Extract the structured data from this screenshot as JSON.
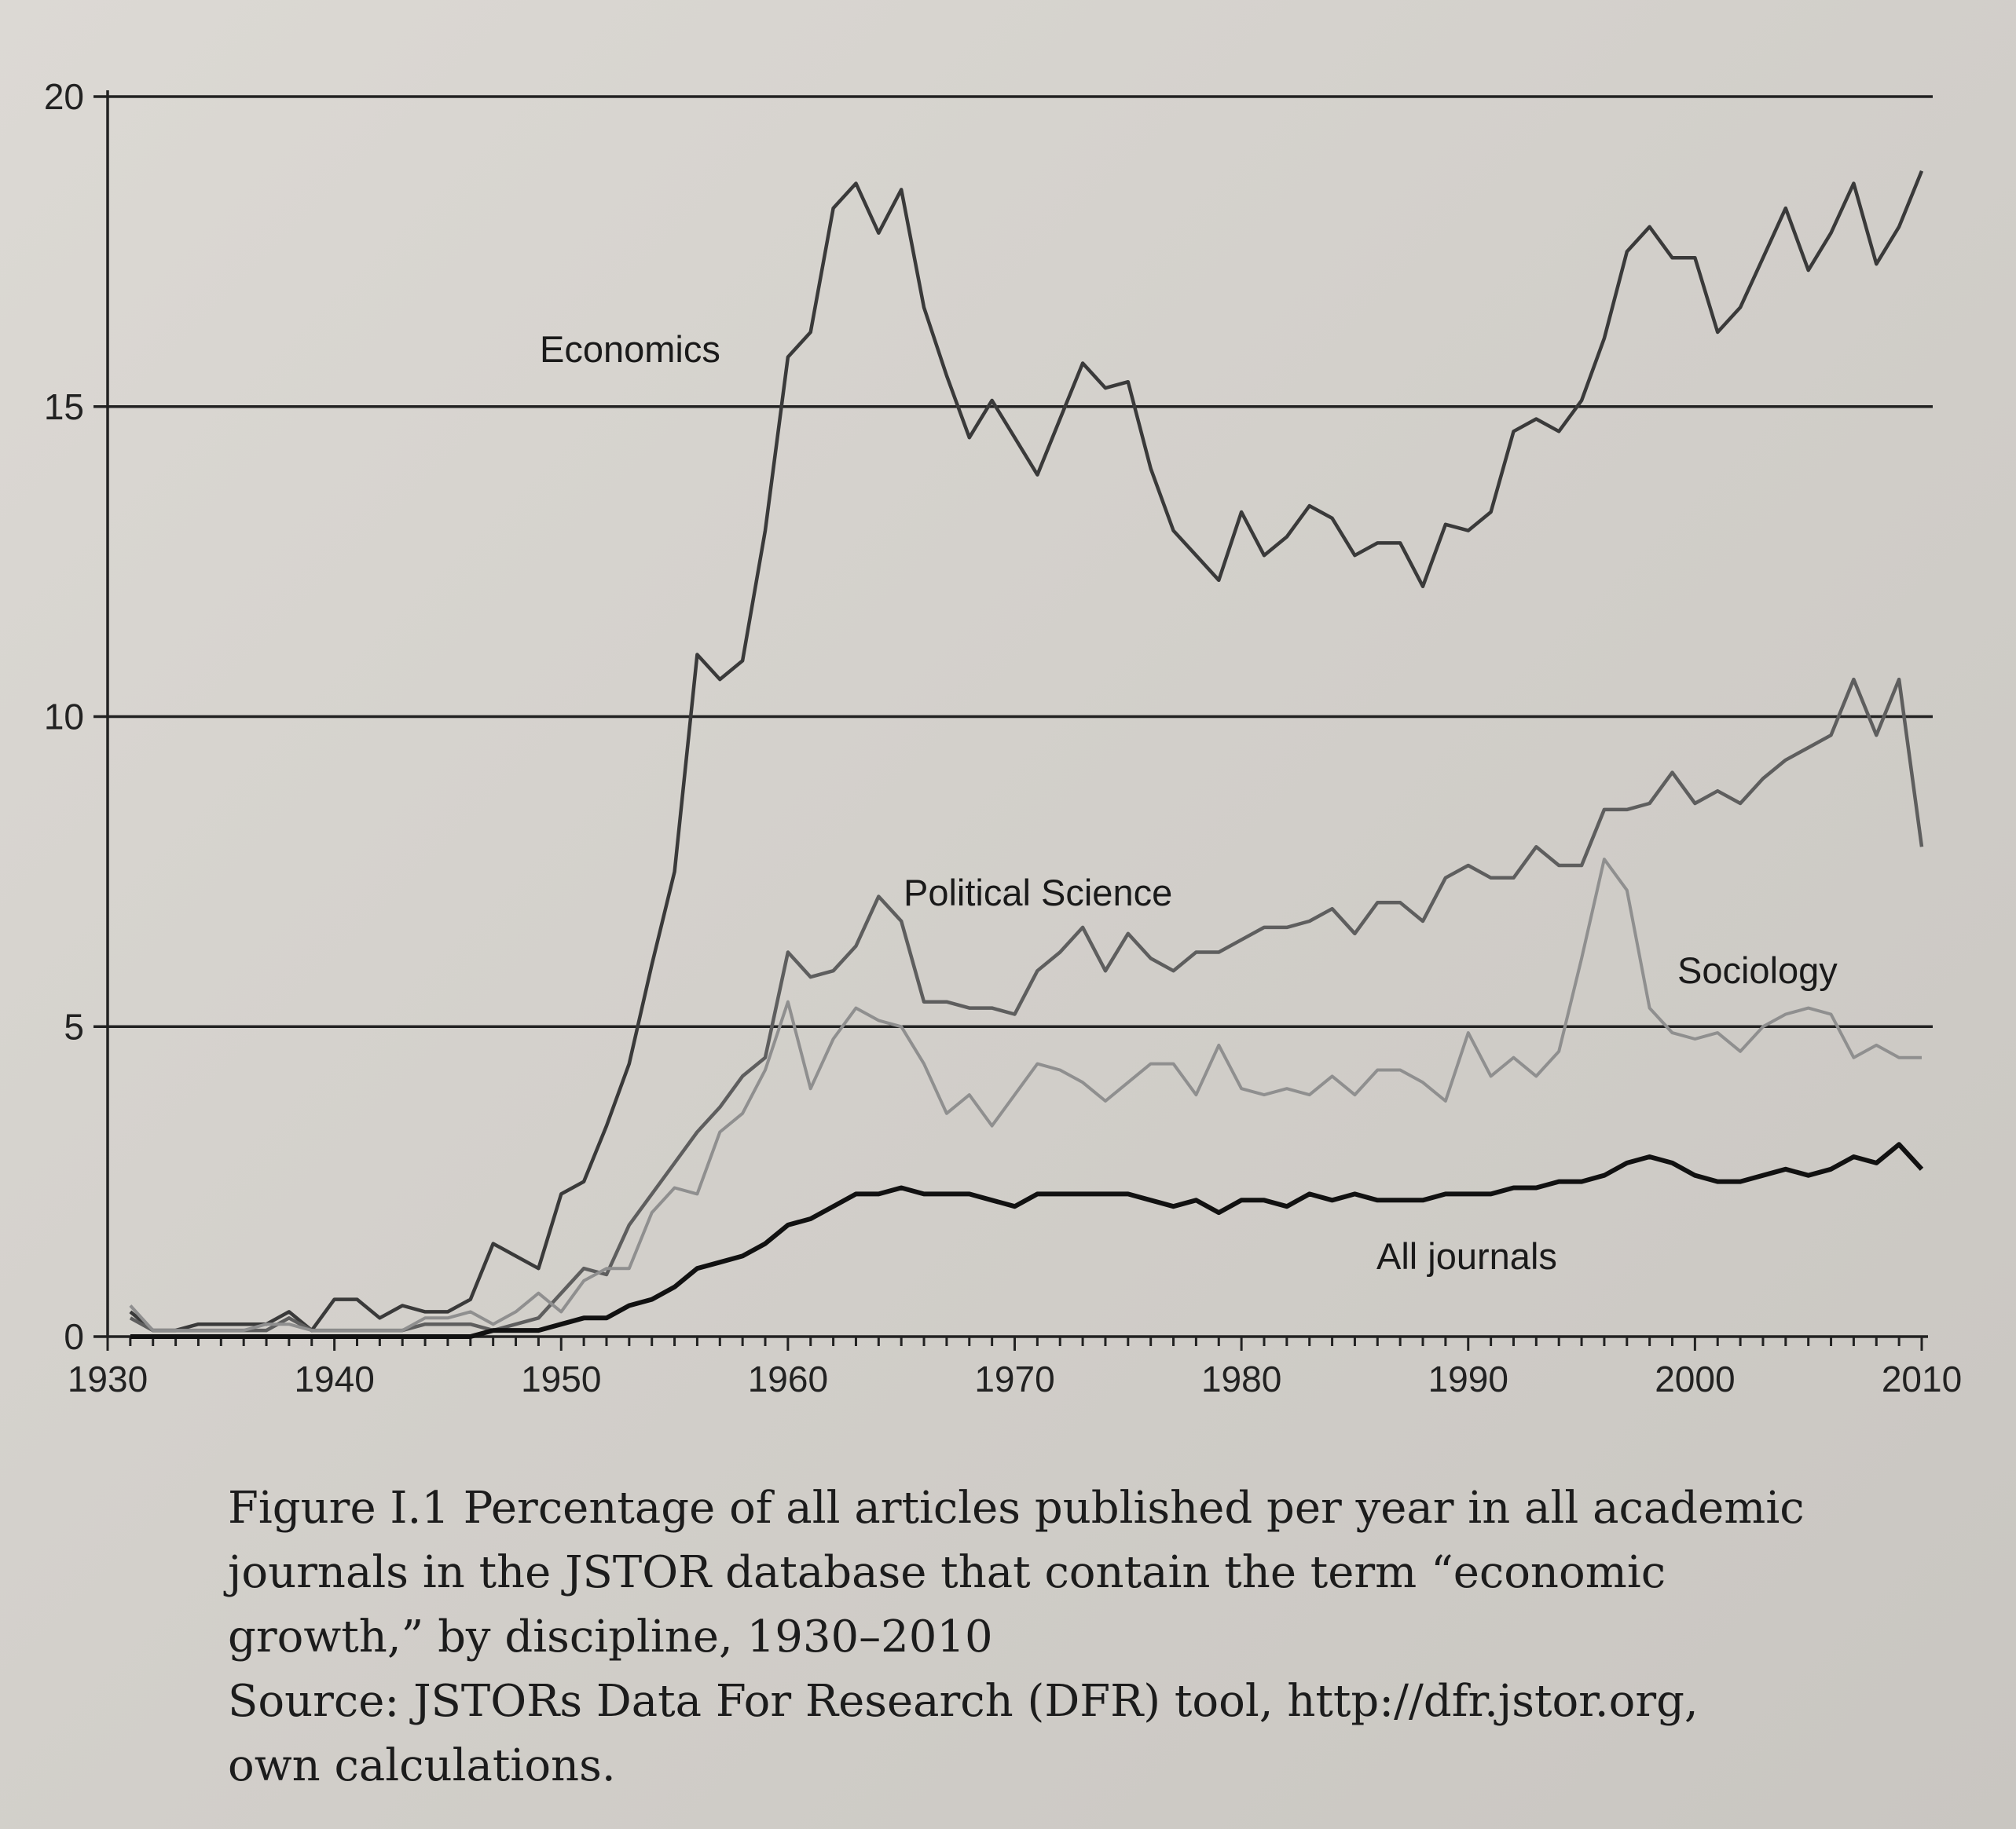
{
  "chart_data": {
    "type": "line",
    "title": "",
    "xlabel": "",
    "ylabel": "",
    "xlim": [
      1930,
      2010
    ],
    "ylim": [
      0,
      20
    ],
    "x_ticks": [
      "1930",
      "1940",
      "1950",
      "1960",
      "1970",
      "1980",
      "1990",
      "2000",
      "2010"
    ],
    "y_ticks": [
      "0",
      "5",
      "10",
      "15",
      "20"
    ],
    "grid": "horizontal",
    "x": [
      1931,
      1932,
      1933,
      1934,
      1935,
      1936,
      1937,
      1938,
      1939,
      1940,
      1941,
      1942,
      1943,
      1944,
      1945,
      1946,
      1947,
      1948,
      1949,
      1950,
      1951,
      1952,
      1953,
      1954,
      1955,
      1956,
      1957,
      1958,
      1959,
      1960,
      1961,
      1962,
      1963,
      1964,
      1965,
      1966,
      1967,
      1968,
      1969,
      1970,
      1971,
      1972,
      1973,
      1974,
      1975,
      1976,
      1977,
      1978,
      1979,
      1980,
      1981,
      1982,
      1983,
      1984,
      1985,
      1986,
      1987,
      1988,
      1989,
      1990,
      1991,
      1992,
      1993,
      1994,
      1995,
      1996,
      1997,
      1998,
      1999,
      2000,
      2001,
      2002,
      2003,
      2004,
      2005,
      2006,
      2007,
      2008,
      2009,
      2010
    ],
    "series": [
      {
        "name": "Economics",
        "color": "#3a3a3a",
        "values": [
          0.4,
          0.1,
          0.1,
          0.2,
          0.2,
          0.2,
          0.2,
          0.4,
          0.1,
          0.6,
          0.6,
          0.3,
          0.5,
          0.4,
          0.4,
          0.6,
          1.5,
          1.3,
          1.1,
          2.3,
          2.5,
          3.4,
          4.4,
          6.0,
          7.5,
          11.0,
          10.6,
          10.9,
          13.0,
          15.8,
          16.2,
          18.2,
          18.6,
          17.8,
          18.5,
          16.6,
          15.5,
          14.5,
          15.1,
          14.5,
          13.9,
          14.8,
          15.7,
          15.3,
          15.4,
          14.0,
          13.0,
          12.6,
          12.2,
          13.3,
          12.6,
          12.9,
          13.4,
          13.2,
          12.6,
          12.8,
          12.8,
          12.1,
          13.1,
          13.0,
          13.3,
          14.6,
          14.8,
          14.6,
          15.1,
          16.1,
          17.5,
          17.9,
          17.4,
          17.4,
          16.2,
          16.6,
          17.4,
          18.2,
          17.2,
          17.8,
          18.6,
          17.3,
          17.9,
          18.8
        ]
      },
      {
        "name": "Political Science",
        "color": "#5e5e5e",
        "values": [
          0.3,
          0.1,
          0.1,
          0.1,
          0.1,
          0.1,
          0.1,
          0.3,
          0.1,
          0.1,
          0.1,
          0.1,
          0.1,
          0.2,
          0.2,
          0.2,
          0.1,
          0.2,
          0.3,
          0.7,
          1.1,
          1.0,
          1.8,
          2.3,
          2.8,
          3.3,
          3.7,
          4.2,
          4.5,
          6.2,
          5.8,
          5.9,
          6.3,
          7.1,
          6.7,
          5.4,
          5.4,
          5.3,
          5.3,
          5.2,
          5.9,
          6.2,
          6.6,
          5.9,
          6.5,
          6.1,
          5.9,
          6.2,
          6.2,
          6.4,
          6.6,
          6.6,
          6.7,
          6.9,
          6.5,
          7.0,
          7.0,
          6.7,
          7.4,
          7.6,
          7.4,
          7.4,
          7.9,
          7.6,
          7.6,
          8.5,
          8.5,
          8.6,
          9.1,
          8.6,
          8.8,
          8.6,
          9.0,
          9.3,
          9.5,
          9.7,
          10.6,
          9.7,
          10.6,
          7.9
        ]
      },
      {
        "name": "Sociology",
        "color": "#8f8f8f",
        "values": [
          0.5,
          0.1,
          0.1,
          0.1,
          0.1,
          0.1,
          0.2,
          0.2,
          0.1,
          0.1,
          0.1,
          0.1,
          0.1,
          0.3,
          0.3,
          0.4,
          0.2,
          0.4,
          0.7,
          0.4,
          0.9,
          1.1,
          1.1,
          2.0,
          2.4,
          2.3,
          3.3,
          3.6,
          4.3,
          5.4,
          4.0,
          4.8,
          5.3,
          5.1,
          5.0,
          4.4,
          3.6,
          3.9,
          3.4,
          3.9,
          4.4,
          4.3,
          4.1,
          3.8,
          4.1,
          4.4,
          4.4,
          3.9,
          4.7,
          4.0,
          3.9,
          4.0,
          3.9,
          4.2,
          3.9,
          4.3,
          4.3,
          4.1,
          3.8,
          4.9,
          4.2,
          4.5,
          4.2,
          4.6,
          6.1,
          7.7,
          7.2,
          5.3,
          4.9,
          4.8,
          4.9,
          4.6,
          5.0,
          5.2,
          5.3,
          5.2,
          4.5,
          4.7,
          4.5,
          4.5
        ]
      },
      {
        "name": "All journals",
        "color": "#111111",
        "values": [
          0.0,
          0.0,
          0.0,
          0.0,
          0.0,
          0.0,
          0.0,
          0.0,
          0.0,
          0.0,
          0.0,
          0.0,
          0.0,
          0.0,
          0.0,
          0.0,
          0.1,
          0.1,
          0.1,
          0.2,
          0.3,
          0.3,
          0.5,
          0.6,
          0.8,
          1.1,
          1.2,
          1.3,
          1.5,
          1.8,
          1.9,
          2.1,
          2.3,
          2.3,
          2.4,
          2.3,
          2.3,
          2.3,
          2.2,
          2.1,
          2.3,
          2.3,
          2.3,
          2.3,
          2.3,
          2.2,
          2.1,
          2.2,
          2.0,
          2.2,
          2.2,
          2.1,
          2.3,
          2.2,
          2.3,
          2.2,
          2.2,
          2.2,
          2.3,
          2.3,
          2.3,
          2.4,
          2.4,
          2.5,
          2.5,
          2.6,
          2.8,
          2.9,
          2.8,
          2.6,
          2.5,
          2.5,
          2.6,
          2.7,
          2.6,
          2.7,
          2.9,
          2.8,
          3.1,
          2.7
        ]
      }
    ]
  },
  "caption": {
    "line1": "Figure I.1  Percentage of all articles published per year in all academic",
    "line2": "journals in the JSTOR database that contain the term “economic",
    "line3": "growth,” by discipline, 1930–2010",
    "line4": "Source: JSTORs Data For Research (DFR) tool, http://dfr.jstor.org,",
    "line5": "own calculations."
  }
}
